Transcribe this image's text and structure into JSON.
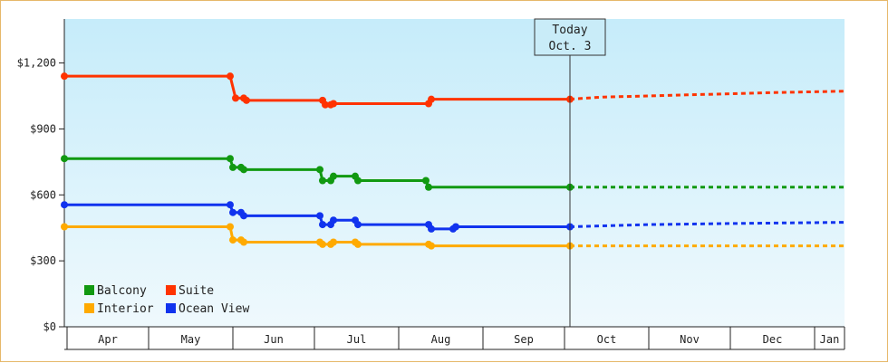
{
  "chart_data": {
    "type": "line",
    "title": "",
    "xlabel": "",
    "ylabel": "",
    "ylim": [
      0,
      1400
    ],
    "y_ticks": [
      0,
      300,
      600,
      900,
      1200
    ],
    "y_tick_labels": [
      "$0",
      "$300",
      "$600",
      "$900",
      "$1,200"
    ],
    "x_range": [
      "2015-03-31",
      "2016-01-12"
    ],
    "x_month_starts": [
      "2015-04-01",
      "2015-05-01",
      "2015-06-01",
      "2015-07-01",
      "2015-08-01",
      "2015-09-01",
      "2015-10-01",
      "2015-11-01",
      "2015-12-01",
      "2016-01-01"
    ],
    "x_tick_labels": [
      "Apr",
      "May",
      "Jun",
      "Jul",
      "Aug",
      "Sep",
      "Oct",
      "Nov",
      "Dec",
      "Jan"
    ],
    "today_marker": {
      "date": "2015-10-03",
      "line1": "Today",
      "line2": "Oct. 3"
    },
    "grid": false,
    "legend_position": "bottom-left",
    "series": [
      {
        "name": "Suite",
        "color": "#ff3300",
        "history": [
          [
            "2015-03-31",
            1140
          ],
          [
            "2015-05-31",
            1140
          ],
          [
            "2015-06-02",
            1040
          ],
          [
            "2015-06-05",
            1040
          ],
          [
            "2015-06-06",
            1030
          ],
          [
            "2015-07-04",
            1030
          ],
          [
            "2015-07-05",
            1010
          ],
          [
            "2015-07-07",
            1010
          ],
          [
            "2015-07-08",
            1015
          ],
          [
            "2015-08-12",
            1015
          ],
          [
            "2015-08-13",
            1035
          ],
          [
            "2015-10-03",
            1035
          ]
        ],
        "forecast": [
          [
            "2015-10-03",
            1035
          ],
          [
            "2015-10-15",
            1045
          ],
          [
            "2015-11-01",
            1050
          ],
          [
            "2015-11-15",
            1055
          ],
          [
            "2015-12-01",
            1060
          ],
          [
            "2015-12-15",
            1065
          ],
          [
            "2016-01-12",
            1072
          ]
        ]
      },
      {
        "name": "Balcony",
        "color": "#119911",
        "history": [
          [
            "2015-03-31",
            765
          ],
          [
            "2015-05-31",
            765
          ],
          [
            "2015-06-01",
            725
          ],
          [
            "2015-06-04",
            725
          ],
          [
            "2015-06-05",
            715
          ],
          [
            "2015-07-03",
            715
          ],
          [
            "2015-07-04",
            665
          ],
          [
            "2015-07-07",
            665
          ],
          [
            "2015-07-08",
            685
          ],
          [
            "2015-07-16",
            685
          ],
          [
            "2015-07-17",
            665
          ],
          [
            "2015-08-11",
            665
          ],
          [
            "2015-08-12",
            635
          ],
          [
            "2015-10-03",
            635
          ]
        ],
        "forecast": [
          [
            "2015-10-03",
            635
          ],
          [
            "2016-01-12",
            635
          ]
        ]
      },
      {
        "name": "Ocean View",
        "color": "#1133ee",
        "history": [
          [
            "2015-03-31",
            555
          ],
          [
            "2015-05-31",
            555
          ],
          [
            "2015-06-01",
            520
          ],
          [
            "2015-06-04",
            520
          ],
          [
            "2015-06-05",
            505
          ],
          [
            "2015-07-03",
            505
          ],
          [
            "2015-07-04",
            465
          ],
          [
            "2015-07-07",
            465
          ],
          [
            "2015-07-08",
            485
          ],
          [
            "2015-07-16",
            485
          ],
          [
            "2015-07-17",
            465
          ],
          [
            "2015-08-12",
            465
          ],
          [
            "2015-08-13",
            445
          ],
          [
            "2015-08-21",
            445
          ],
          [
            "2015-08-22",
            455
          ],
          [
            "2015-10-03",
            455
          ]
        ],
        "forecast": [
          [
            "2015-10-03",
            455
          ],
          [
            "2015-11-01",
            465
          ],
          [
            "2015-12-01",
            470
          ],
          [
            "2016-01-12",
            475
          ]
        ]
      },
      {
        "name": "Interior",
        "color": "#ffaa00",
        "history": [
          [
            "2015-03-31",
            455
          ],
          [
            "2015-05-31",
            455
          ],
          [
            "2015-06-01",
            395
          ],
          [
            "2015-06-04",
            395
          ],
          [
            "2015-06-05",
            385
          ],
          [
            "2015-07-03",
            385
          ],
          [
            "2015-07-04",
            375
          ],
          [
            "2015-07-07",
            375
          ],
          [
            "2015-07-08",
            385
          ],
          [
            "2015-07-16",
            385
          ],
          [
            "2015-07-17",
            375
          ],
          [
            "2015-08-12",
            375
          ],
          [
            "2015-08-13",
            368
          ],
          [
            "2015-10-03",
            368
          ]
        ],
        "forecast": [
          [
            "2015-10-03",
            368
          ],
          [
            "2016-01-12",
            368
          ]
        ]
      }
    ],
    "legend_order": [
      "Balcony",
      "Suite",
      "Interior",
      "Ocean View"
    ]
  }
}
